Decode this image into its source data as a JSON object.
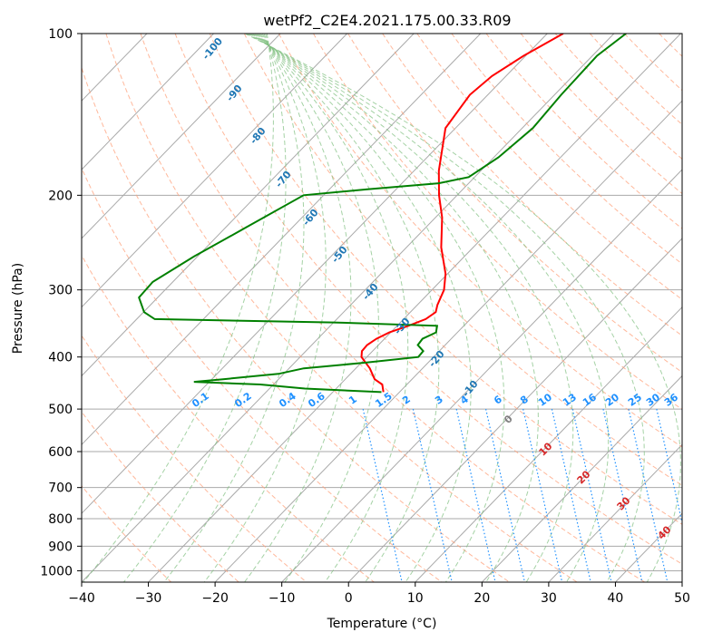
{
  "chart_data": {
    "type": "line",
    "title": "wetPf2_C2E4.2021.175.00.33.R09",
    "xlabel": "Temperature (°C)",
    "ylabel": "Pressure (hPa)",
    "xlim": [
      -40,
      50
    ],
    "ylim": [
      1050,
      100
    ],
    "y_scale": "log",
    "grid": true,
    "x_ticks": [
      -40,
      -30,
      -20,
      -10,
      0,
      10,
      20,
      30,
      40,
      50
    ],
    "x_tick_labels": [
      "−40",
      "−30",
      "−20",
      "−10",
      "0",
      "10",
      "20",
      "30",
      "40",
      "50"
    ],
    "y_ticks": [
      100,
      200,
      300,
      400,
      500,
      600,
      700,
      800,
      900,
      1000
    ],
    "y_tick_labels": [
      "100",
      "200",
      "300",
      "400",
      "500",
      "600",
      "700",
      "800",
      "900",
      "1000"
    ],
    "series": [
      {
        "color": "#ff0000",
        "values_pressure_hPa": [
          100,
          110,
          120,
          130,
          150,
          180,
          200,
          220,
          250,
          280,
          300,
          320,
          330,
          340,
          350,
          360,
          370,
          380,
          390,
          400,
          420,
          440,
          450,
          465
        ],
        "values_temperature_C": [
          -47.6,
          -50.3,
          -52.1,
          -52.7,
          -51.5,
          -46.3,
          -42.7,
          -39.0,
          -34.8,
          -30.3,
          -28.2,
          -27.0,
          -26.2,
          -26.7,
          -28.3,
          -30.2,
          -31.2,
          -31.7,
          -31.6,
          -30.8,
          -27.9,
          -25.6,
          -23.7,
          -22.4
        ]
      },
      {
        "color": "#008000",
        "values_pressure_hPa": [
          100,
          110,
          130,
          150,
          170,
          185,
          190,
          195,
          200,
          230,
          260,
          290,
          310,
          330,
          340,
          345,
          350,
          360,
          370,
          380,
          390,
          400,
          410,
          420,
          430,
          440,
          445,
          450,
          458,
          465
        ],
        "values_temperature_C": [
          -38.2,
          -39.3,
          -39.0,
          -38.4,
          -39.3,
          -40.9,
          -44.5,
          -54.3,
          -63.0,
          -67.0,
          -70.5,
          -73.0,
          -72.8,
          -69.9,
          -67.3,
          -40.0,
          -24.0,
          -23.2,
          -24.3,
          -24.1,
          -22.4,
          -22.3,
          -29.5,
          -37.8,
          -40.8,
          -48.3,
          -52.3,
          -42.0,
          -34.7,
          -22.7
        ]
      }
    ],
    "dry_adiabat_labels": [
      "-100",
      "-90",
      "-80",
      "-70",
      "-60",
      "-50",
      "-40",
      "-30",
      "-20",
      "-10"
    ],
    "mixing_ratio_labels": [
      "0.1",
      "0.2",
      "0.4",
      "0.6",
      "1",
      "1.5",
      "2",
      "3",
      "4",
      "6",
      "8",
      "10",
      "13",
      "16",
      "20",
      "25",
      "30",
      "36"
    ],
    "moist_adiabat_labels": [
      "0",
      "10",
      "20",
      "30",
      "40"
    ],
    "colors": {
      "temperature": "#ff0000",
      "dewpoint": "#008000",
      "dry_adiabat": "#ffa07a",
      "moist_adiabat": "#7fbf7f",
      "mixing_ratio": "#1e90ff",
      "dry_label": "#1f77b4",
      "moist_label": "#d62728",
      "isotherm_grid": "#a9a9a9"
    }
  }
}
